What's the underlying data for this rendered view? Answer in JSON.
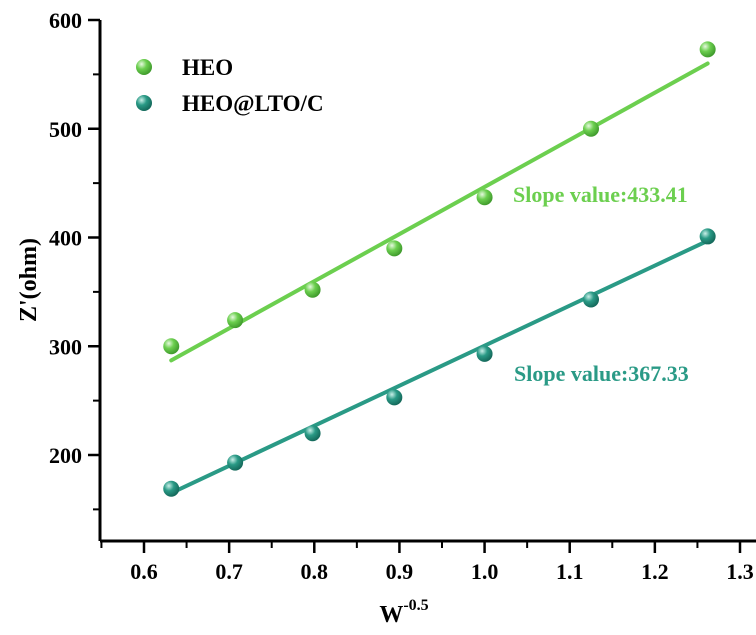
{
  "chart_data": {
    "type": "scatter",
    "xlabel": "W",
    "xlabel_sup": "-0.5",
    "ylabel": "Z'(ohm)",
    "xlim": [
      0.55,
      1.3
    ],
    "ylim": [
      125,
      600
    ],
    "xticks": [
      "0.6",
      "0.7",
      "0.8",
      "0.9",
      "1.0",
      "1.1",
      "1.2",
      "1.3"
    ],
    "yticks": [
      "200",
      "300",
      "400",
      "500",
      "600"
    ],
    "grid": false,
    "legend_position": "top-left",
    "x": [
      0.632,
      0.707,
      0.798,
      0.894,
      1.0,
      1.125,
      1.262
    ],
    "series": [
      {
        "name": "HEO",
        "color": "#6ccf4f",
        "values": [
          300,
          324,
          352,
          390,
          437,
          500,
          573
        ],
        "fit": {
          "x": [
            0.632,
            1.262
          ],
          "y": [
            287,
            560
          ]
        },
        "annotation": "Slope value:433.41"
      },
      {
        "name": "HEO@LTO/C",
        "color": "#2a9a86",
        "values": [
          169,
          193,
          220,
          253,
          293,
          343,
          401
        ],
        "fit": {
          "x": [
            0.632,
            1.262
          ],
          "y": [
            165,
            397
          ]
        },
        "annotation": "Slope value:367.33"
      }
    ]
  }
}
